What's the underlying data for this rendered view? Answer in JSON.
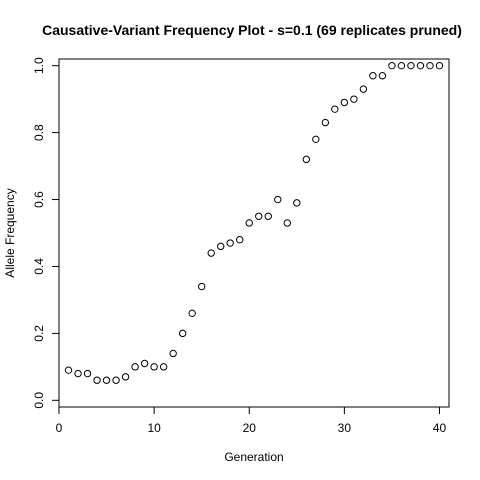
{
  "chart_data": {
    "type": "scatter",
    "title": "Causative-Variant Frequency Plot - s=0.1 (69 replicates pruned)",
    "xlabel": "Generation",
    "ylabel": "Allele Frequency",
    "xlim": [
      0,
      41
    ],
    "ylim": [
      -0.02,
      1.02
    ],
    "xticks": [
      0,
      10,
      20,
      30,
      40
    ],
    "yticks": [
      0.0,
      0.2,
      0.4,
      0.6,
      0.8,
      1.0
    ],
    "ytick_labels": [
      "0.0",
      "0.2",
      "0.4",
      "0.6",
      "0.8",
      "1.0"
    ],
    "grid": false,
    "legend": "none",
    "marker": "open-circle",
    "x": [
      1,
      2,
      3,
      4,
      5,
      6,
      7,
      8,
      9,
      10,
      11,
      12,
      13,
      14,
      15,
      16,
      17,
      18,
      19,
      20,
      21,
      22,
      23,
      24,
      25,
      26,
      27,
      28,
      29,
      30,
      31,
      32,
      33,
      34,
      35,
      36,
      37,
      38,
      39,
      40
    ],
    "y": [
      0.09,
      0.08,
      0.08,
      0.06,
      0.06,
      0.06,
      0.07,
      0.1,
      0.11,
      0.1,
      0.1,
      0.14,
      0.2,
      0.26,
      0.34,
      0.44,
      0.46,
      0.47,
      0.48,
      0.53,
      0.55,
      0.55,
      0.6,
      0.53,
      0.59,
      0.72,
      0.78,
      0.83,
      0.87,
      0.89,
      0.9,
      0.93,
      0.97,
      0.97,
      1.0,
      1.0,
      1.0,
      1.0,
      1.0,
      1.0
    ]
  }
}
